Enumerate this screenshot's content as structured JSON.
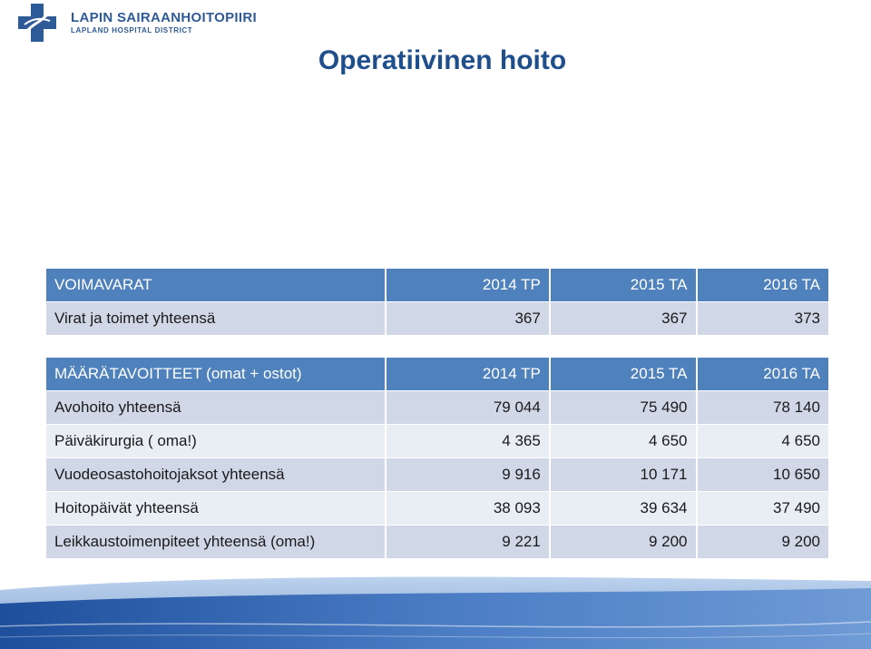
{
  "header": {
    "org_name": "LAPIN SAIRAANHOITOPIIRI",
    "org_subtitle": "LAPLAND HOSPITAL DISTRICT",
    "logo_icon": "blue-cross-icon",
    "title": "Operatiivinen hoito"
  },
  "colors": {
    "header_row": "#4f81bd",
    "row_dark": "#d0d8e8",
    "row_light": "#e9edf4",
    "title": "#1f4e8c"
  },
  "table_resources": {
    "header": [
      "VOIMAVARAT",
      "2014 TP",
      "2015 TA",
      "2016 TA"
    ],
    "rows": [
      [
        "Virat ja toimet yhteensä",
        "367",
        "367",
        "373"
      ]
    ]
  },
  "table_targets": {
    "header": [
      "MÄÄRÄTAVOITTEET (omat + ostot)",
      "2014 TP",
      "2015 TA",
      "2016 TA"
    ],
    "rows": [
      [
        "Avohoito yhteensä",
        "79 044",
        "75 490",
        "78 140"
      ],
      [
        "Päiväkirurgia ( oma!)",
        "4 365",
        "4 650",
        "4 650"
      ],
      [
        "Vuodeosastohoitojaksot  yhteensä",
        "9 916",
        "10 171",
        "10 650"
      ],
      [
        "Hoitopäivät yhteensä",
        "38 093",
        "39 634",
        "37 490"
      ],
      [
        "Leikkaustoimenpiteet yhteensä (oma!)",
        "9 221",
        "9 200",
        "9 200"
      ]
    ]
  }
}
